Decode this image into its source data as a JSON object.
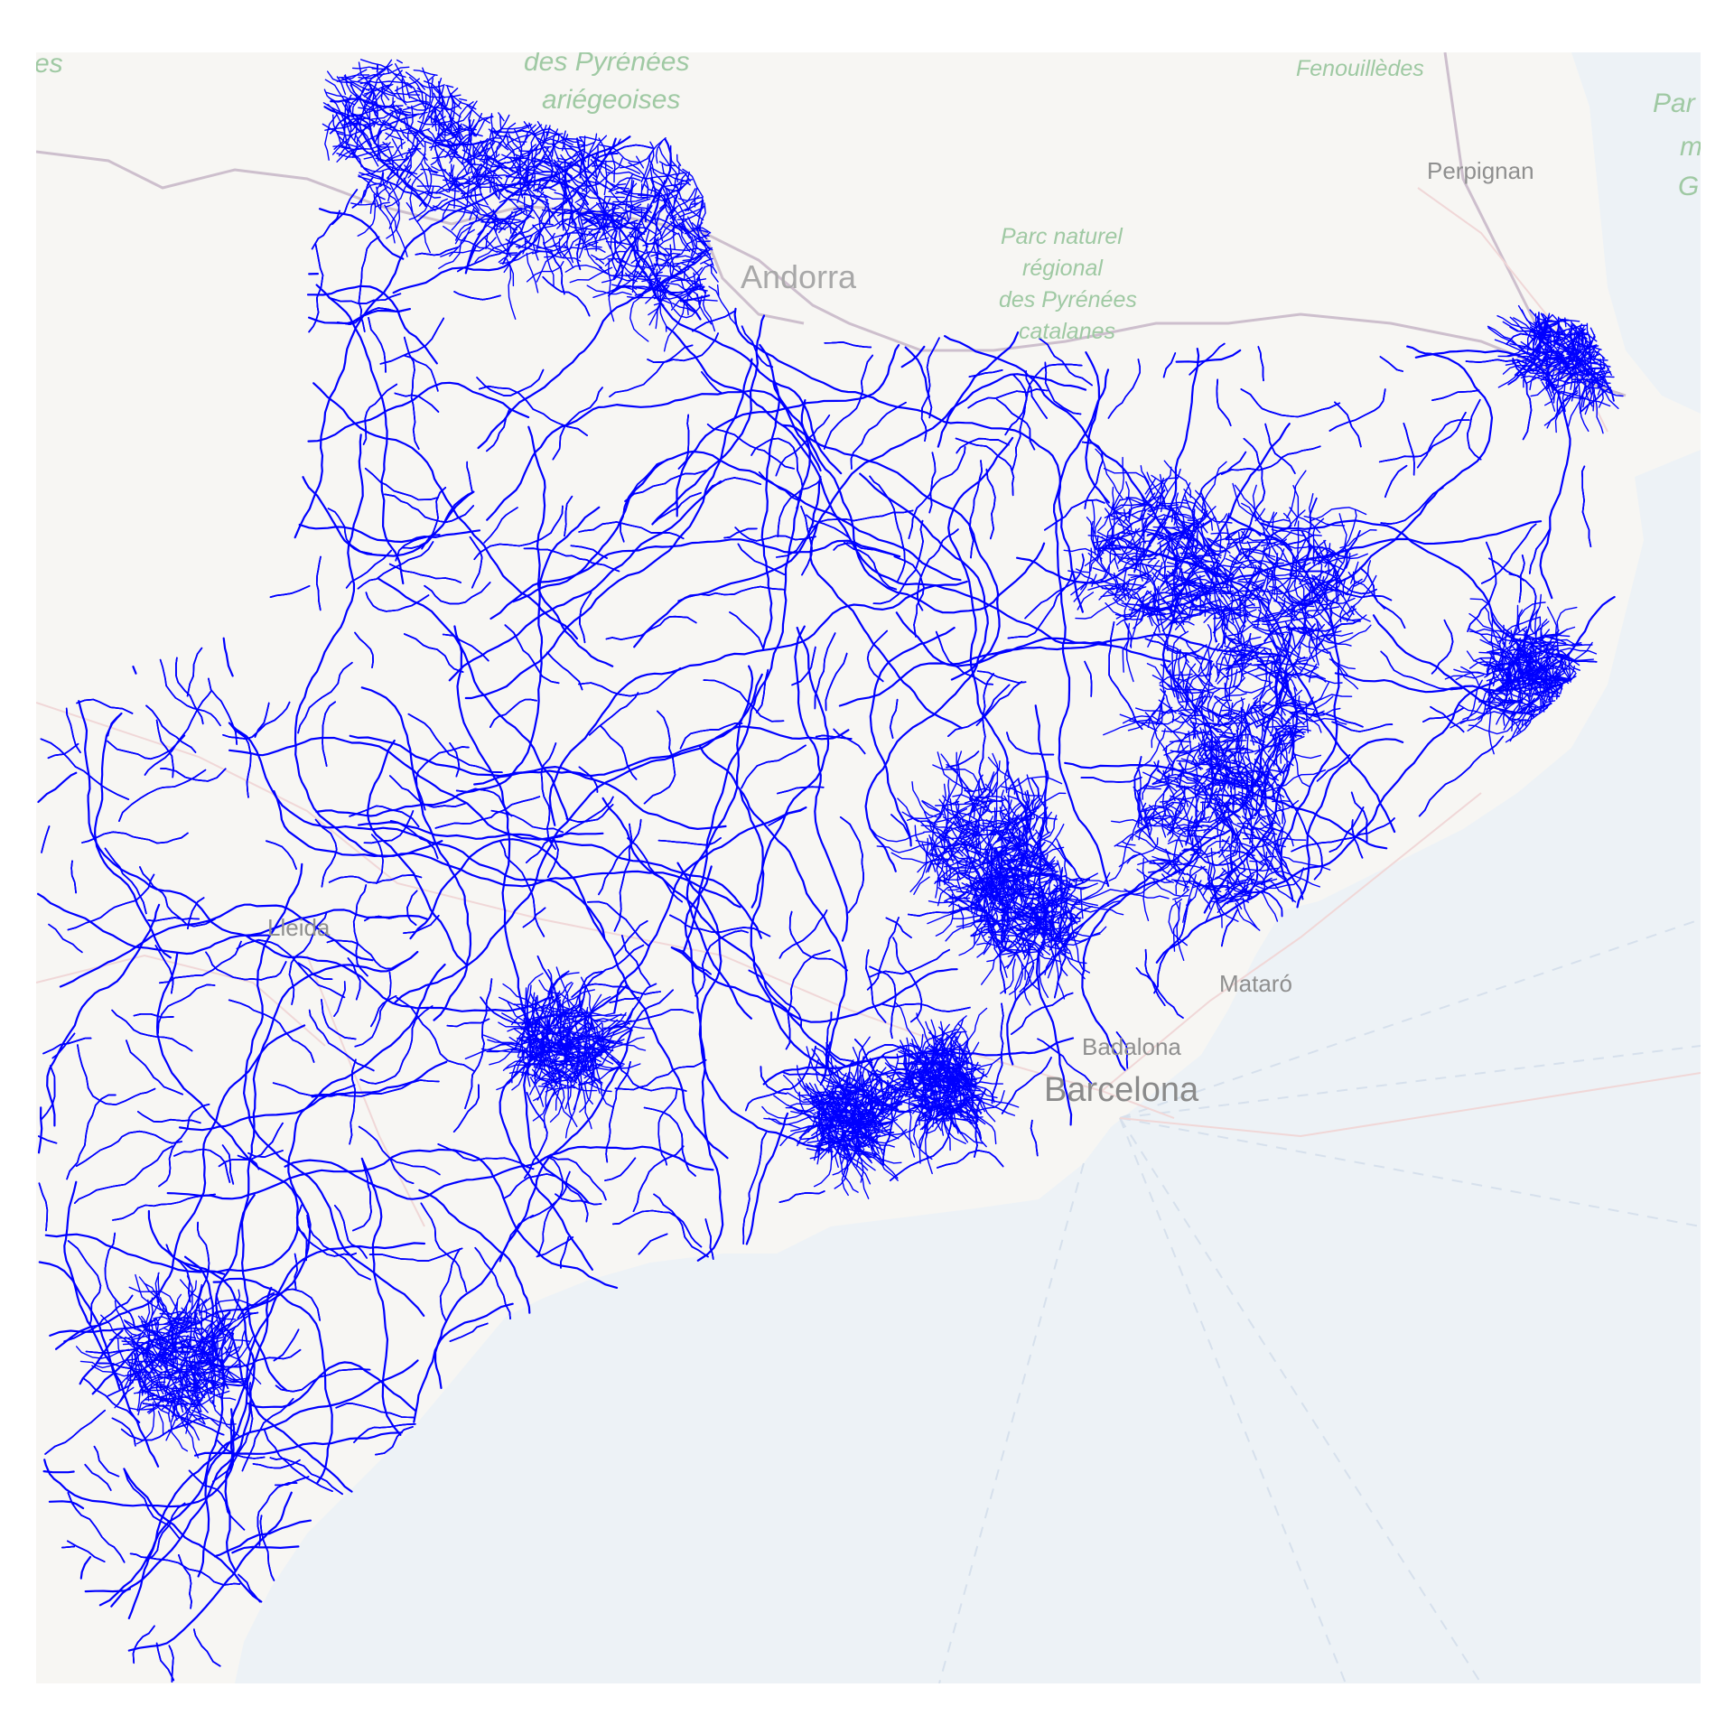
{
  "map": {
    "labels": {
      "pyrenees_ariegeoises_1": "des Pyrénées",
      "pyrenees_ariegeoises_2": "ariégeoises",
      "fenouilledes": "Fenouillèdes",
      "perpignan": "Perpignan",
      "andorra": "Andorra",
      "parc_naturel_1": "Parc naturel",
      "parc_naturel_2": "régional",
      "parc_naturel_3": "des Pyrénées",
      "parc_naturel_4": "catalanes",
      "parc_marin_1": "Par",
      "parc_marin_2": "m",
      "parc_marin_3": "G",
      "edge_es": "es",
      "lleida": "Lleida",
      "mataro": "Mataró",
      "badalona": "Badalona",
      "barcelona": "Barcelona"
    },
    "colors": {
      "land": "#f7f6f3",
      "sea": "#edf2f6",
      "rivers": "#0000ff",
      "park_text": "#9fc9a3",
      "border": "#c9bcc9"
    },
    "layer": "rivers of Catalonia"
  }
}
